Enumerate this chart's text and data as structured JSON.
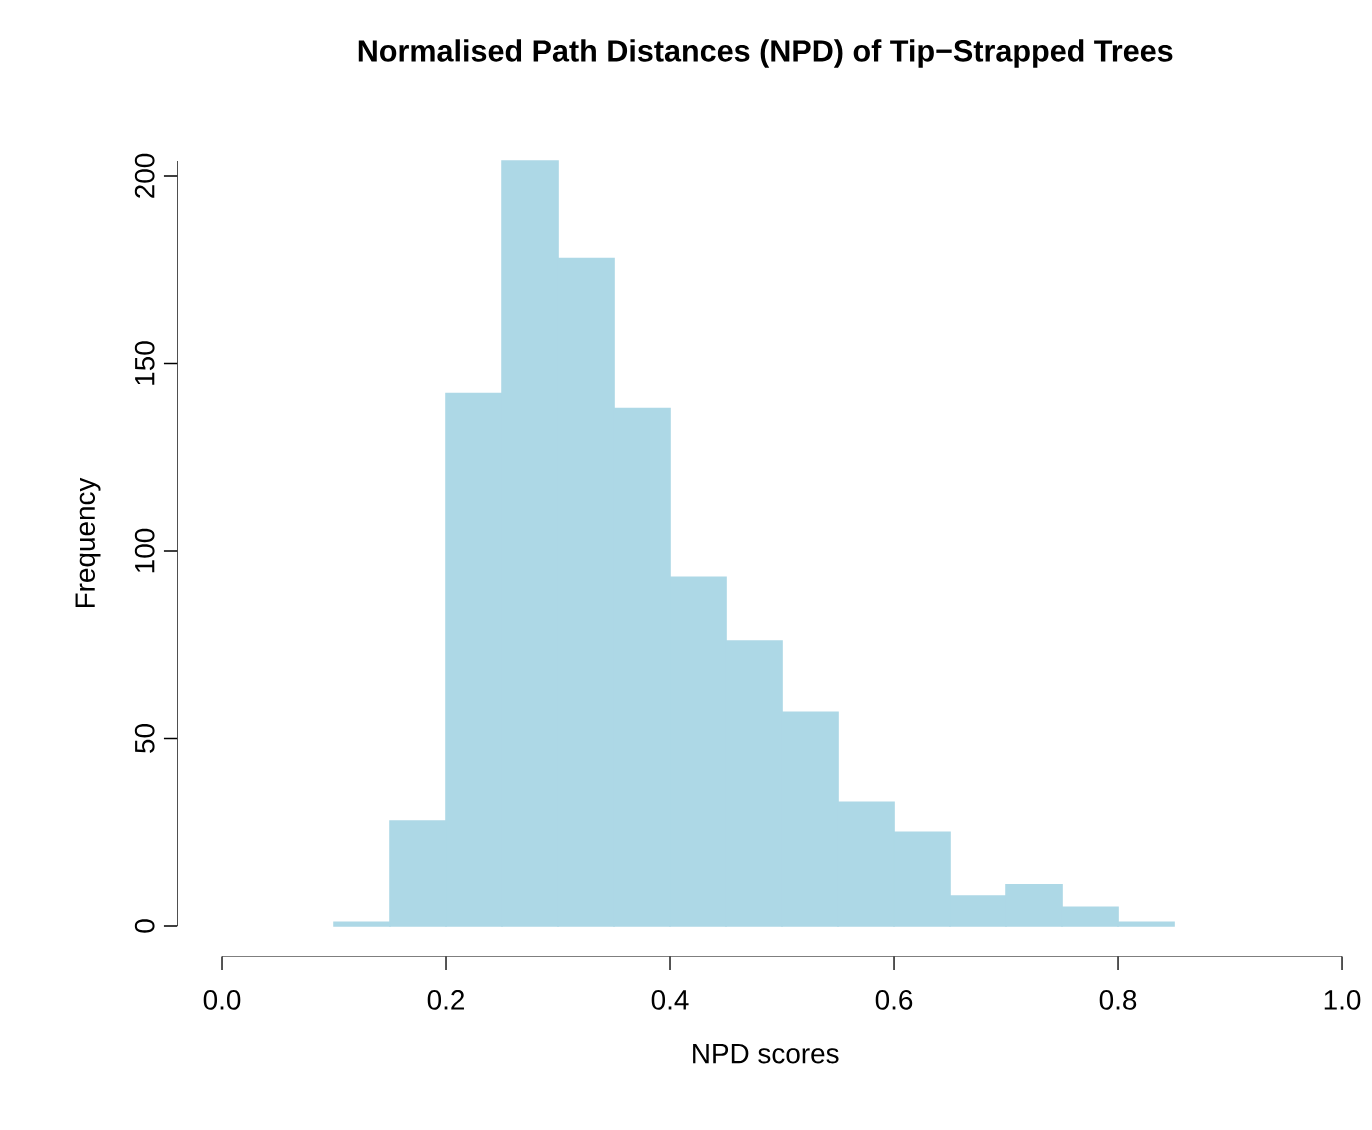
{
  "chart_data": {
    "type": "histogram",
    "title": "Normalised Path Distances (NPD) of Tip−Strapped Trees",
    "xlabel": "NPD scores",
    "ylabel": "Frequency",
    "bins": [
      0.1,
      0.15,
      0.2,
      0.25,
      0.3,
      0.35,
      0.4,
      0.45,
      0.5,
      0.55,
      0.6,
      0.65,
      0.7,
      0.75,
      0.8,
      0.85
    ],
    "values": [
      1,
      28,
      142,
      204,
      178,
      138,
      93,
      76,
      57,
      33,
      25,
      8,
      11,
      5,
      1
    ],
    "color": "#add8e6",
    "xlim": [
      0,
      1
    ],
    "xticks": [
      {
        "value": 0,
        "label": "0.0"
      },
      {
        "value": 0.2,
        "label": "0.2"
      },
      {
        "value": 0.4,
        "label": "0.4"
      },
      {
        "value": 0.6,
        "label": "0.6"
      },
      {
        "value": 0.8,
        "label": "0.8"
      },
      {
        "value": 1,
        "label": "1.0"
      }
    ],
    "ylim": [
      0,
      204
    ],
    "yticks": [
      0,
      50,
      100,
      150,
      200
    ],
    "grid": false
  }
}
